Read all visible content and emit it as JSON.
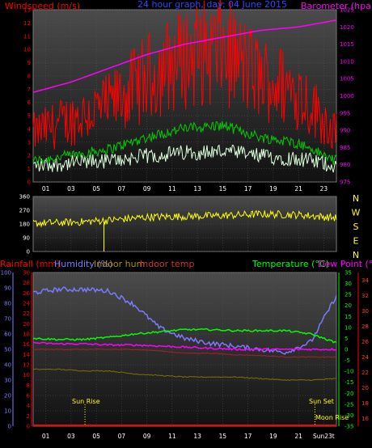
{
  "top_chart": {
    "label_wind": "Windspeed (m/s)",
    "label_title": "24 hour graph, day:  04 June 2015",
    "label_baro": "Barometer (hpa)",
    "wind_ticks": [
      "0",
      "1",
      "2",
      "3",
      "4",
      "5",
      "6",
      "7",
      "8",
      "9",
      "10",
      "11",
      "12",
      "13"
    ],
    "baro_ticks": [
      "975",
      "980",
      "985",
      "990",
      "995",
      "1000",
      "1005",
      "1010",
      "1015",
      "1020",
      "1025"
    ],
    "x_ticks": [
      "01",
      "03",
      "05",
      "07",
      "09",
      "11",
      "13",
      "15",
      "17",
      "19",
      "21",
      "23"
    ]
  },
  "dir_chart": {
    "ticks": [
      "360",
      "270",
      "180",
      "90",
      "0"
    ],
    "compass": [
      "N",
      "W",
      "S",
      "E",
      "N"
    ]
  },
  "bottom_chart": {
    "label_rain": "Rainfall (mm)",
    "label_hum": "Humidity (%)",
    "label_inhum": "Indoor hum",
    "label_intemp": "Indoor temp",
    "label_temp": "Temperature (°C)",
    "label_dew": "Dew Point (°C)",
    "rain_ticks": [
      "0",
      "2",
      "4",
      "6",
      "8",
      "10",
      "12",
      "14",
      "16",
      "18",
      "20",
      "22",
      "24",
      "26",
      "28",
      "30"
    ],
    "hum_ticks": [
      "0",
      "10",
      "20",
      "30",
      "40",
      "50",
      "60",
      "70",
      "80",
      "90",
      "100"
    ],
    "temp_ticks": [
      "-35",
      "-30",
      "-25",
      "-20",
      "-15",
      "-10",
      "-5",
      "0",
      "5",
      "10",
      "15",
      "20",
      "25",
      "30",
      "35"
    ],
    "dew_ticks": [
      "16",
      "18",
      "20",
      "22",
      "24",
      "26",
      "28",
      "30",
      "32",
      "34"
    ],
    "x_ticks": [
      "01",
      "03",
      "05",
      "07",
      "09",
      "11",
      "13",
      "15",
      "17",
      "19",
      "21",
      "Sun23t"
    ],
    "sun_rise": "Sun Rise",
    "sun_set": "Sun Set",
    "moon_rise": "Moon Rise"
  },
  "colors": {
    "wind": "#ff0000",
    "gust": "#ff0000",
    "avg": "#00cc00",
    "low": "#ddffdd",
    "baro": "#ff00ff",
    "dir": "#ffff00",
    "humidity": "#7a7aff",
    "temp": "#00ff00",
    "dew": "#ff00ff",
    "indoor_hum": "#807000",
    "indoor_temp": "#aa2222",
    "rain": "#ff0000"
  },
  "chart_data": [
    {
      "type": "line",
      "title": "24 hour graph, day:  04 June 2015",
      "x_hours": [
        0,
        3,
        6,
        9,
        12,
        15,
        18,
        21,
        24
      ],
      "series": [
        {
          "name": "Windspeed (m/s)",
          "axis": "left",
          "ylim": [
            0,
            13
          ],
          "values": [
            3.5,
            4.5,
            5.5,
            7.5,
            9.0,
            9.5,
            7.5,
            6.5,
            3.5
          ]
        },
        {
          "name": "Barometer (hpa)",
          "axis": "right",
          "ylim": [
            975,
            1025
          ],
          "values": [
            1001,
            1004,
            1008,
            1012,
            1015,
            1017,
            1019,
            1020,
            1022
          ]
        }
      ],
      "xticks": [
        "01",
        "03",
        "05",
        "07",
        "09",
        "11",
        "13",
        "15",
        "17",
        "19",
        "21",
        "23"
      ]
    },
    {
      "type": "scatter",
      "x_hours": [
        0,
        3,
        6,
        9,
        12,
        15,
        18,
        21,
        24
      ],
      "series": [
        {
          "name": "",
          "ylim": [
            0,
            360
          ],
          "values": [
            185,
            190,
            205,
            225,
            230,
            235,
            245,
            240,
            220
          ]
        }
      ]
    },
    {
      "type": "line",
      "x_hours": [
        0,
        2,
        4,
        6,
        8,
        10,
        12,
        14,
        16,
        18,
        20,
        22,
        24
      ],
      "series": [
        {
          "name": "Humidity (%)",
          "axis": "left",
          "ylim": [
            0,
            100
          ],
          "values": [
            87,
            89,
            89,
            88,
            79,
            64,
            57,
            54,
            52,
            50,
            48,
            55,
            85
          ]
        },
        {
          "name": "Temperature (°C)",
          "axis": "right",
          "ylim": [
            -35,
            35
          ],
          "values": [
            5,
            4.5,
            4.5,
            5.5,
            7,
            8,
            9,
            9,
            8.5,
            8.5,
            8.5,
            7,
            3
          ]
        },
        {
          "name": "Dew Point (°C)",
          "axis": "right",
          "ylim": [
            -35,
            35
          ],
          "values": [
            3,
            2.5,
            2.5,
            2,
            2,
            1.5,
            1,
            0.5,
            0,
            0,
            0,
            0,
            0
          ]
        },
        {
          "name": "Indoor hum",
          "axis": "left",
          "ylim": [
            0,
            100
          ],
          "values": [
            37,
            37,
            36,
            36,
            34,
            33,
            32,
            32,
            32,
            31,
            30,
            30,
            31
          ]
        },
        {
          "name": "Indoor temp",
          "axis": "right_inner",
          "ylim": [
            16,
            34
          ],
          "values": [
            25,
            25,
            25,
            25,
            25,
            24.8,
            24.5,
            24.5,
            24.3,
            24.2,
            24,
            24,
            24
          ]
        }
      ],
      "xticks": [
        "01",
        "03",
        "05",
        "07",
        "09",
        "11",
        "13",
        "15",
        "17",
        "19",
        "21",
        "Sun23t"
      ]
    }
  ]
}
